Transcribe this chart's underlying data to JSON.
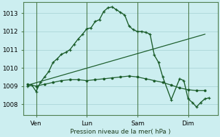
{
  "bg_color": "#cceef0",
  "grid_color": "#aad4d8",
  "line_color": "#1a5c2a",
  "ylabel_text": "Pression niveau de la mer( hPa )",
  "yticks": [
    1008,
    1009,
    1010,
    1011,
    1012,
    1013
  ],
  "xlim": [
    -0.5,
    22.5
  ],
  "ylim": [
    1007.4,
    1013.6
  ],
  "xtick_positions": [
    1,
    7,
    13,
    19
  ],
  "xtick_labels": [
    "Ven",
    "Lun",
    "Sam",
    "Dim"
  ],
  "vline_positions": [
    1,
    7,
    13,
    19
  ],
  "series1_x": [
    0,
    0.5,
    1.0,
    1.5,
    2,
    2.5,
    3,
    3.5,
    4,
    4.5,
    5,
    5.5,
    6,
    6.5,
    7,
    7.5,
    8,
    8.5,
    9,
    9.5,
    10,
    10.5,
    11,
    11.5,
    12,
    12.5,
    13,
    13.5,
    14,
    14.5,
    15,
    15.5,
    16,
    17,
    18,
    18.5,
    19,
    19.5,
    20,
    20.5,
    21,
    21.5
  ],
  "series1_y": [
    1009.0,
    1009.05,
    1008.7,
    1009.2,
    1009.5,
    1009.8,
    1010.3,
    1010.5,
    1010.75,
    1010.85,
    1011.0,
    1011.3,
    1011.6,
    1011.85,
    1012.15,
    1012.2,
    1012.55,
    1012.65,
    1013.1,
    1013.3,
    1013.35,
    1013.2,
    1013.05,
    1012.9,
    1012.3,
    1012.1,
    1012.0,
    1012.0,
    1011.95,
    1011.85,
    1010.7,
    1010.3,
    1009.5,
    1008.25,
    1009.4,
    1009.3,
    1008.3,
    1008.1,
    1007.85,
    1008.1,
    1008.3,
    1008.35
  ],
  "series2_x": [
    0,
    1,
    2,
    3,
    4,
    5,
    6,
    7,
    8,
    9,
    10,
    11,
    12,
    13,
    14,
    15,
    16,
    17,
    18,
    19,
    20,
    21
  ],
  "series2_y": [
    1009.1,
    1009.0,
    1009.1,
    1009.2,
    1009.3,
    1009.35,
    1009.35,
    1009.3,
    1009.35,
    1009.4,
    1009.45,
    1009.5,
    1009.55,
    1009.5,
    1009.4,
    1009.3,
    1009.2,
    1009.05,
    1008.9,
    1008.8,
    1008.75,
    1008.75
  ],
  "series3_x": [
    0,
    21
  ],
  "series3_y": [
    1009.05,
    1011.85
  ]
}
